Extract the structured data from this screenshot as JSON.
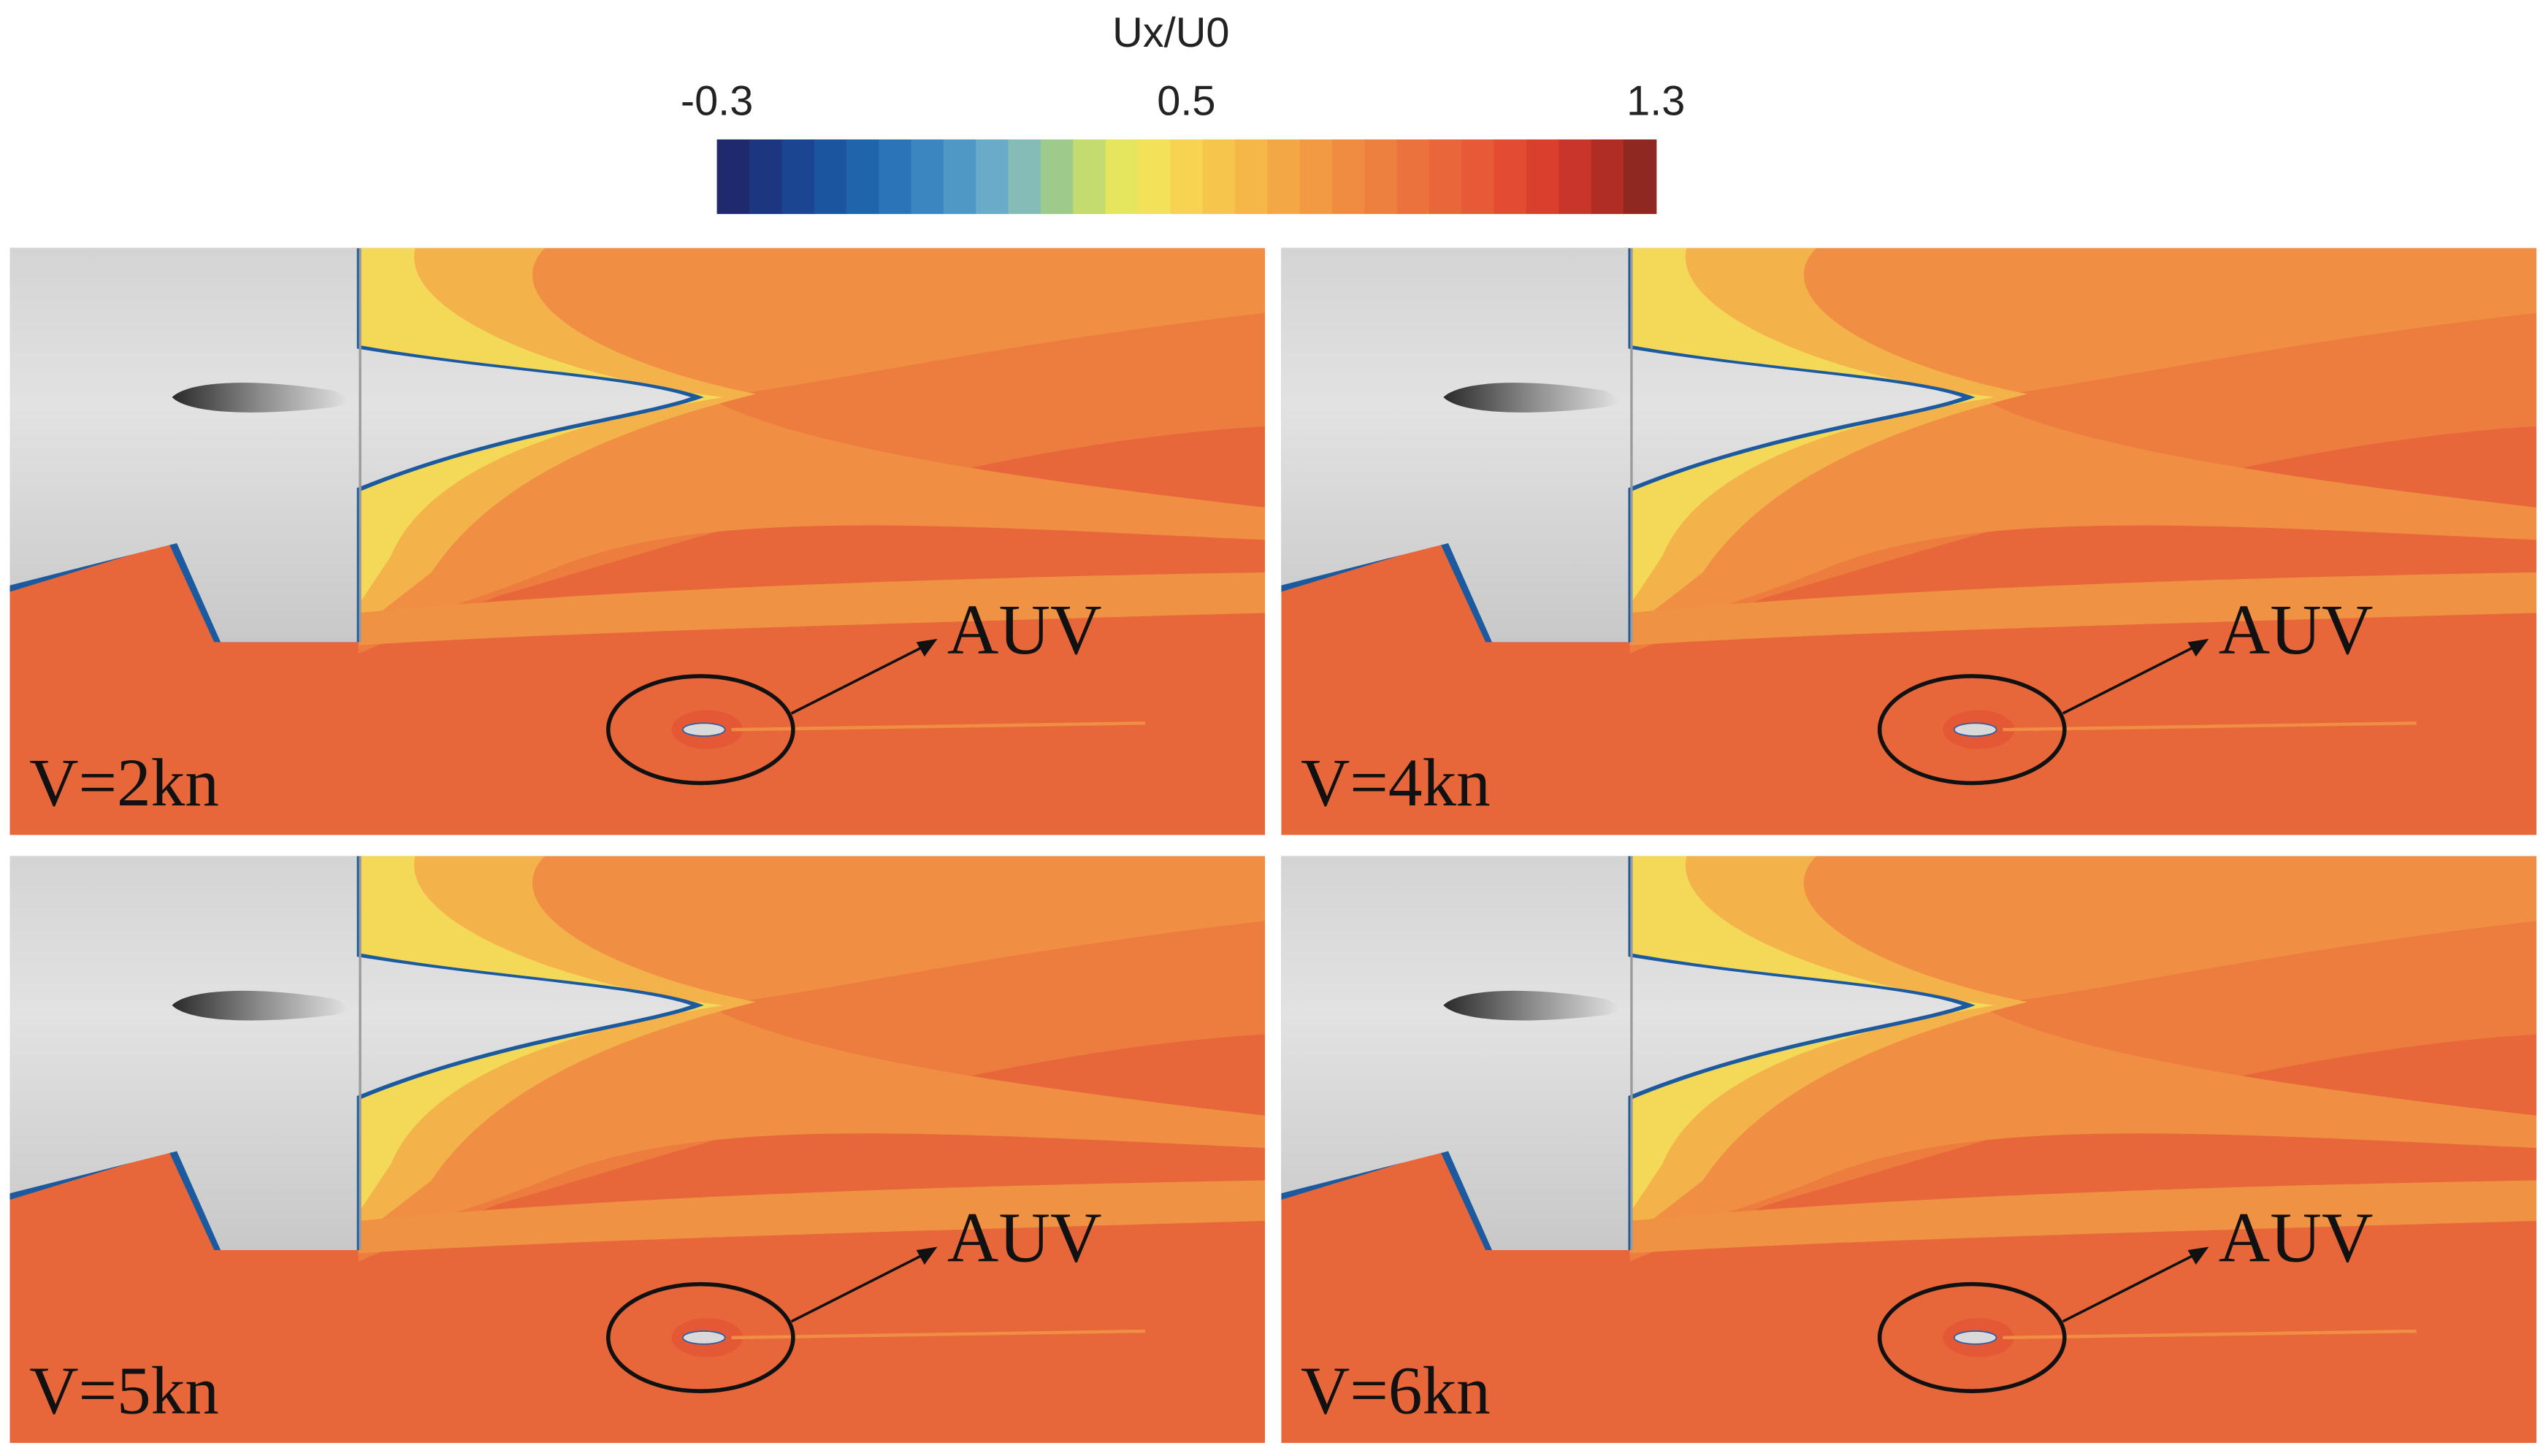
{
  "colorbar": {
    "title": "Ux/U0",
    "range": [
      -0.3,
      1.3
    ],
    "ticks": [
      -0.3,
      0.5,
      1.3
    ],
    "colors": [
      "#1f2a6e",
      "#1d3680",
      "#1b4590",
      "#1c559f",
      "#1f65ac",
      "#2a74b7",
      "#3b86c0",
      "#4f98c6",
      "#69abc8",
      "#85bcb7",
      "#9ecb8c",
      "#c4db70",
      "#e6e55e",
      "#f3e15a",
      "#f6d452",
      "#f6c54c",
      "#f5b748",
      "#f3a845",
      "#f19a43",
      "#ef8c41",
      "#ed7f3f",
      "#eb723d",
      "#e9663a",
      "#e75a37",
      "#e34c33",
      "#da3f2e",
      "#c9352a",
      "#b02d25",
      "#8f2820"
    ]
  },
  "panels": [
    {
      "label": "V=2kn",
      "annotation": "AUV"
    },
    {
      "label": "V=4kn",
      "annotation": "AUV"
    },
    {
      "label": "V=5kn",
      "annotation": "AUV"
    },
    {
      "label": "V=6kn",
      "annotation": "AUV"
    }
  ]
}
